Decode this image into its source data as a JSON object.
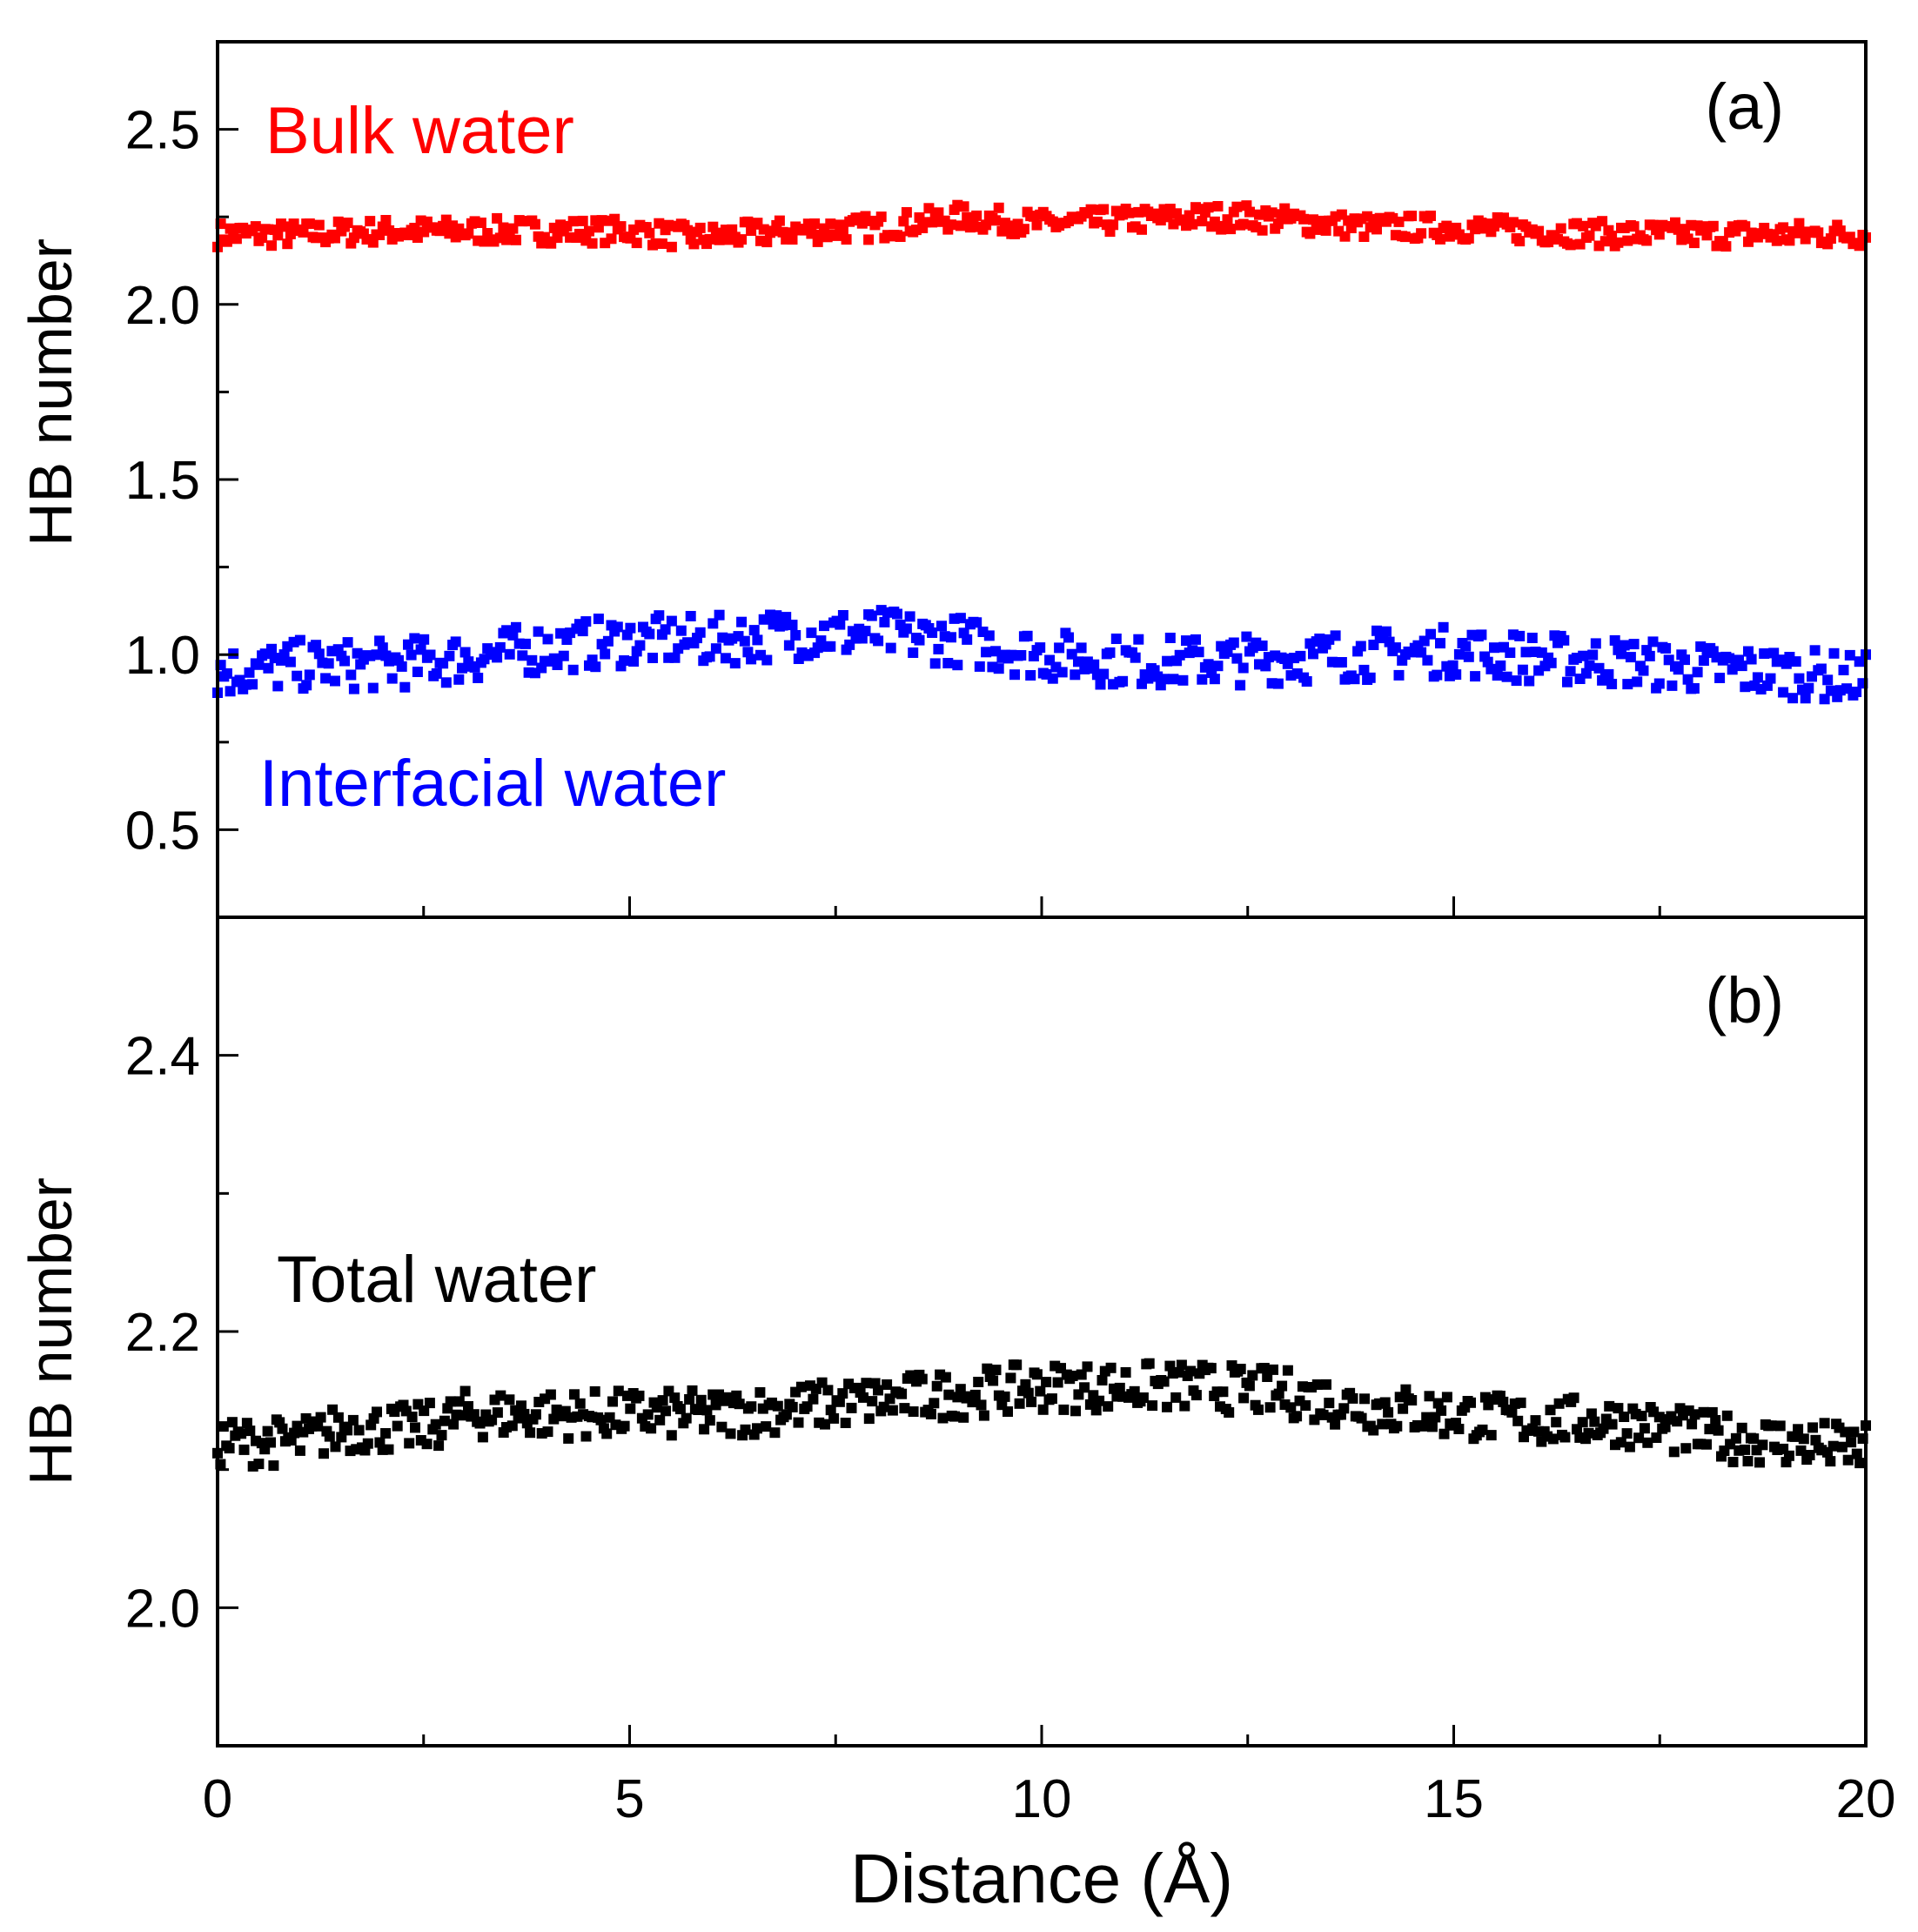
{
  "chart_data": [
    {
      "id": "a",
      "type": "scatter",
      "panel_label": "(a)",
      "xlabel": "",
      "ylabel": "HB number",
      "xlim": [
        0,
        20
      ],
      "ylim": [
        0.25,
        2.75
      ],
      "xticks": [
        0,
        5,
        10,
        15,
        20
      ],
      "yticks": [
        0.5,
        1.0,
        1.5,
        2.0,
        2.5
      ],
      "ytick_labels": [
        "0.5",
        "1.0",
        "1.5",
        "2.0",
        "2.5"
      ],
      "show_xtick_labels": false,
      "series": [
        {
          "name": "Bulk water",
          "color": "#ff0000",
          "x": [
            0,
            1,
            2,
            3,
            4,
            5,
            5.8,
            7,
            8,
            9,
            9.5,
            10,
            11,
            12,
            12.5,
            13,
            14,
            15,
            16,
            17,
            18,
            19,
            20
          ],
          "y": [
            2.2,
            2.2,
            2.21,
            2.21,
            2.21,
            2.21,
            2.19,
            2.21,
            2.22,
            2.25,
            2.24,
            2.23,
            2.24,
            2.25,
            2.25,
            2.24,
            2.22,
            2.22,
            2.21,
            2.2,
            2.2,
            2.2,
            2.2
          ],
          "spread": 0.045
        },
        {
          "name": "Interfacial water",
          "color": "#0000ff",
          "x": [
            0,
            1,
            2,
            3,
            4,
            5,
            6,
            7,
            8,
            9,
            10,
            11,
            12,
            13,
            14,
            15,
            16,
            17,
            18,
            19,
            20
          ],
          "y": [
            0.95,
            0.97,
            0.97,
            0.99,
            1.02,
            1.04,
            1.04,
            1.06,
            1.06,
            1.04,
            1.0,
            0.98,
            0.98,
            0.99,
            1.0,
            1.01,
            0.99,
            0.98,
            0.96,
            0.95,
            0.93
          ],
          "spread": 0.09
        }
      ],
      "annotations": [
        {
          "text": "Bulk water",
          "color": "#ff0000"
        },
        {
          "text": "Interfacial water",
          "color": "#0000ff"
        }
      ]
    },
    {
      "id": "b",
      "type": "scatter",
      "panel_label": "(b)",
      "xlabel": "Distance (Å)",
      "ylabel": "HB number",
      "xlim": [
        0,
        20
      ],
      "ylim": [
        1.9,
        2.5
      ],
      "xticks": [
        0,
        5,
        10,
        15,
        20
      ],
      "xtick_labels": [
        "0",
        "5",
        "10",
        "15",
        "20"
      ],
      "yticks": [
        2.0,
        2.2,
        2.4
      ],
      "ytick_labels": [
        "2.0",
        "2.2",
        "2.4"
      ],
      "show_xtick_labels": true,
      "series": [
        {
          "name": "Total water",
          "color": "#000000",
          "x": [
            0,
            1,
            1.5,
            2,
            2.5,
            3,
            4,
            5,
            6,
            7,
            8,
            9,
            10,
            11,
            12,
            13,
            14,
            15,
            16,
            17,
            18,
            19,
            20
          ],
          "y": [
            2.12,
            2.12,
            2.13,
            2.13,
            2.13,
            2.14,
            2.14,
            2.14,
            2.14,
            2.145,
            2.15,
            2.155,
            2.16,
            2.16,
            2.16,
            2.155,
            2.145,
            2.14,
            2.135,
            2.135,
            2.125,
            2.12,
            2.115
          ],
          "spread": 0.022
        }
      ],
      "annotations": [
        {
          "text": "Total water",
          "color": "#000000"
        }
      ]
    }
  ]
}
